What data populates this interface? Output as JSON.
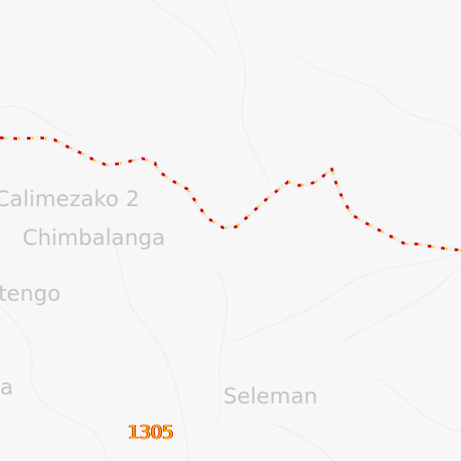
{
  "map": {
    "places": [
      {
        "id": "calimezako-2",
        "label": "Calimezako 2"
      },
      {
        "id": "chimbalanga",
        "label": "Chimbalanga"
      },
      {
        "id": "tengo",
        "label": "tengo"
      },
      {
        "id": "a",
        "label": "a"
      },
      {
        "id": "seleman",
        "label": "Seleman"
      }
    ],
    "road_ref": "1305",
    "colors": {
      "background": "#f7f7f7",
      "terrain_lines": "#ececec",
      "label": "#c4c4c4",
      "road_casing": "#d40000",
      "road_fill": "#f4c400",
      "road_base": "#f0f0f0"
    }
  }
}
